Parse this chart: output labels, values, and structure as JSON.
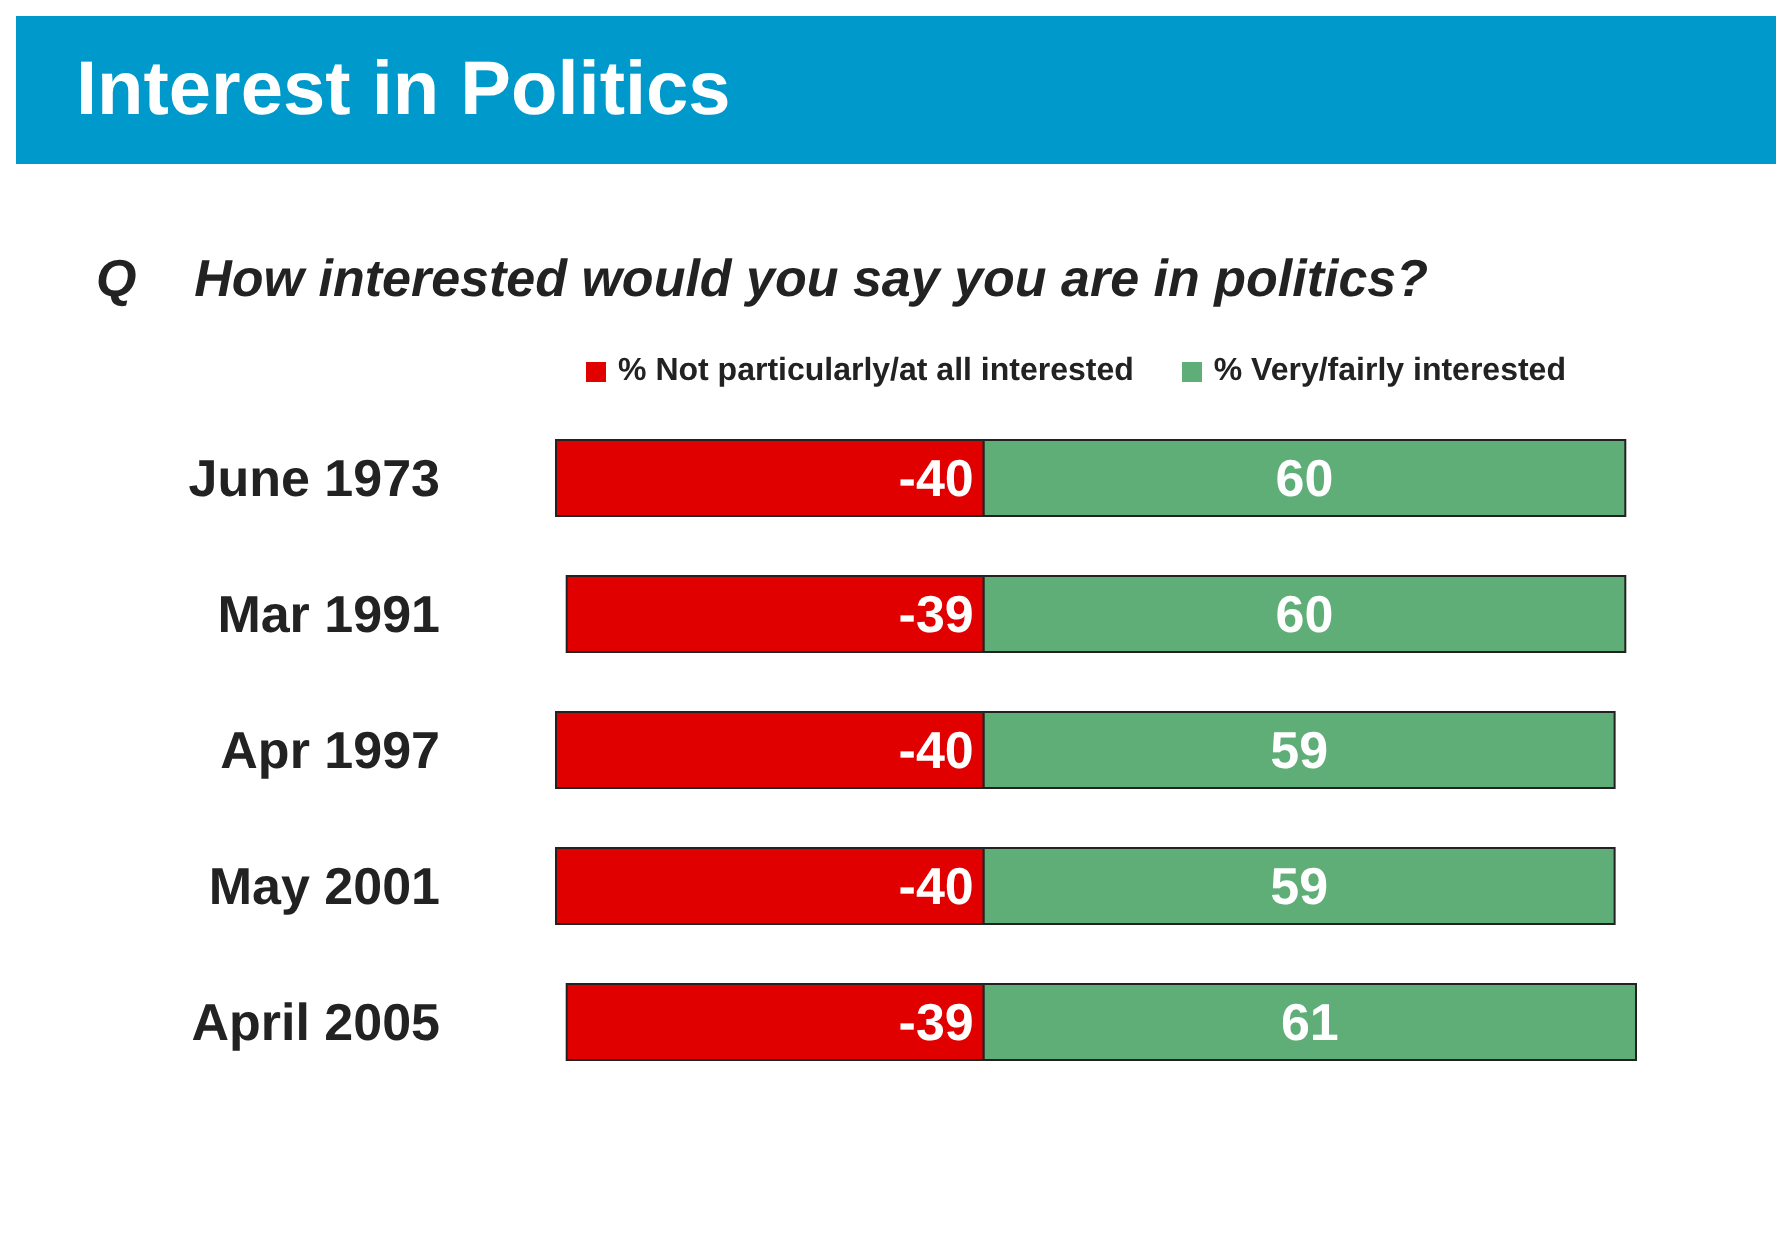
{
  "chart_data": {
    "type": "bar",
    "orientation": "horizontal",
    "stacked": true,
    "title": "Interest in Politics",
    "subtitle": "Q    How interested would you say you are in politics?",
    "categories": [
      "June 1973",
      "Mar 1991",
      "Apr 1997",
      "May 2001",
      "April 2005"
    ],
    "series": [
      {
        "name": "% Not particularly/at all interested",
        "color": "#e00000",
        "values": [
          -40,
          -39,
          -40,
          -40,
          -39
        ]
      },
      {
        "name": "%  Very/fairly interested",
        "color": "#5fae78",
        "values": [
          60,
          60,
          59,
          59,
          61
        ]
      }
    ],
    "data_labels": true,
    "legend": "top",
    "grid": false
  }
}
